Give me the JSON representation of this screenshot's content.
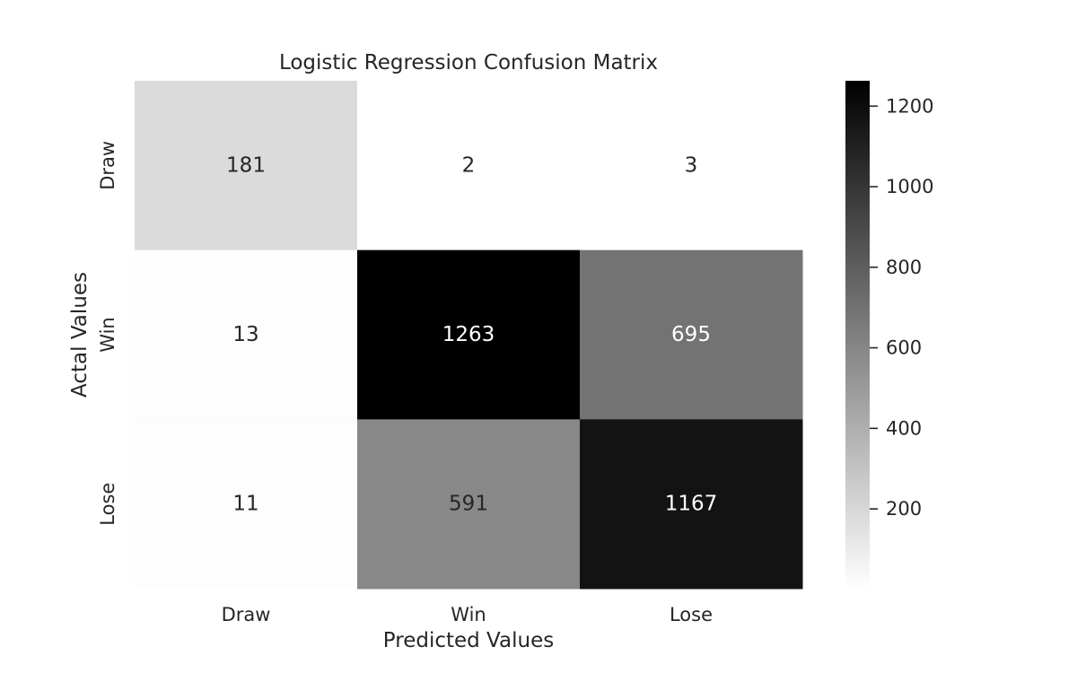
{
  "chart_data": {
    "type": "heatmap",
    "title": "Logistic Regression Confusion Matrix",
    "xlabel": "Predicted Values",
    "ylabel": "Actal Values",
    "x_categories": [
      "Draw",
      "Win",
      "Lose"
    ],
    "y_categories": [
      "Draw",
      "Win",
      "Lose"
    ],
    "values": [
      [
        181,
        2,
        3
      ],
      [
        13,
        1263,
        695
      ],
      [
        11,
        591,
        1167
      ]
    ],
    "colormap": "Greys",
    "color_low": "#ffffff",
    "color_high": "#000000",
    "vmin": 2,
    "vmax": 1263,
    "colorbar_ticks": [
      200,
      400,
      600,
      800,
      1000,
      1200
    ],
    "grid": false
  }
}
